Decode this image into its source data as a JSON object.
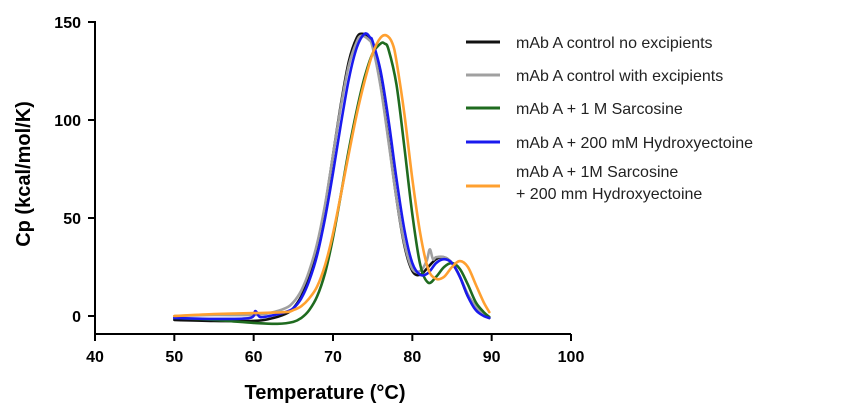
{
  "chart_data": {
    "type": "line",
    "xlabel": "Temperature (°C)",
    "ylabel": "Cp (kcal/mol/K)",
    "xlim": [
      40,
      100
    ],
    "ylim": [
      -5,
      150
    ],
    "xticks": [
      40,
      50,
      60,
      70,
      80,
      90,
      100
    ],
    "yticks": [
      0,
      50,
      100,
      150
    ],
    "grid": false,
    "legend_position": "top-right",
    "series": [
      {
        "name": "mAb A control no excipients",
        "color": "#111111",
        "x": [
          50,
          55,
          60,
          62,
          64,
          65,
          66,
          67,
          68,
          69,
          70,
          71,
          72,
          73,
          73.7,
          74.5,
          75,
          76,
          77,
          78,
          79,
          80,
          81,
          82,
          83,
          84,
          85,
          86,
          87,
          88,
          89,
          89.7
        ],
        "y": [
          -2,
          -2.5,
          -2.5,
          -1.5,
          1,
          4,
          10,
          20,
          35,
          56,
          82,
          108,
          130,
          142,
          144,
          142,
          138,
          118,
          90,
          60,
          36,
          23,
          21,
          25,
          29,
          30,
          27,
          20,
          10,
          4,
          0.5,
          -1
        ]
      },
      {
        "name": "mAb A control with excipients",
        "color": "#a0a0a0",
        "x": [
          50,
          55,
          60,
          62,
          64,
          65,
          66,
          67,
          68,
          69,
          70,
          71,
          72,
          73,
          73.6,
          74.5,
          75,
          76,
          77,
          78,
          79,
          80,
          81,
          81.8,
          82.2,
          82.6,
          83,
          84,
          85,
          86,
          87,
          88,
          89,
          89.7
        ],
        "y": [
          0,
          0.5,
          0.5,
          1.5,
          4,
          7,
          13,
          23,
          37,
          57,
          82,
          107,
          128,
          140,
          143,
          141,
          137,
          117,
          89,
          60,
          37,
          24,
          23,
          28,
          34,
          29,
          30,
          30,
          27,
          20,
          11,
          5,
          1,
          -1
        ]
      },
      {
        "name": "mAb A + 1 M Sarcosine",
        "color": "#1f6b1f",
        "x": [
          50,
          55,
          60,
          63,
          65,
          66,
          67,
          68,
          69,
          70,
          71,
          72,
          73,
          74,
          75,
          76,
          76.5,
          77,
          78,
          79,
          80,
          81,
          82,
          83,
          84,
          85,
          86,
          87,
          88,
          89,
          89.7
        ],
        "y": [
          -1,
          -2,
          -3.5,
          -4,
          -3,
          -1,
          3,
          10,
          22,
          40,
          62,
          85,
          105,
          122,
          134,
          139,
          139,
          136,
          118,
          86,
          52,
          26,
          17,
          20,
          25,
          27,
          24,
          16,
          7,
          2,
          -0.5
        ]
      },
      {
        "name": "mAb A + 200 mM Hydroxyectoine",
        "color": "#1a1aee",
        "x": [
          50,
          55,
          59.5,
          60.2,
          60.8,
          62,
          64,
          65,
          66,
          67,
          68,
          69,
          70,
          71,
          72,
          73,
          74,
          74.7,
          75,
          76,
          77,
          78,
          79,
          80,
          81,
          82,
          83,
          84,
          85,
          86,
          87,
          88,
          89,
          89.7
        ],
        "y": [
          -1,
          -1.5,
          -1,
          2.5,
          -0.5,
          0,
          2,
          4,
          9,
          18,
          31,
          50,
          73,
          98,
          121,
          137,
          144,
          142,
          140,
          125,
          100,
          70,
          44,
          27,
          21,
          22,
          27,
          29,
          27,
          20,
          10,
          3,
          0,
          -1
        ]
      },
      {
        "name": "mAb A + 1M Sarcosine + 200 mm Hydroxyectoine",
        "label_lines": [
          "mAb A + 1M Sarcosine",
          "+ 200 mm Hydroxyectoine"
        ],
        "color": "#ffa030",
        "x": [
          50,
          55,
          60,
          64,
          65,
          66,
          67,
          68,
          69,
          70,
          71,
          72,
          73,
          74,
          75,
          76,
          76.8,
          77.5,
          78,
          79,
          80,
          81,
          82,
          83,
          84,
          85,
          86,
          87,
          88,
          89,
          89.7
        ],
        "y": [
          0,
          1,
          1.5,
          2,
          3,
          5,
          9,
          15,
          26,
          42,
          62,
          83,
          103,
          120,
          134,
          142,
          143,
          139,
          130,
          103,
          70,
          42,
          24,
          19,
          20,
          25,
          28,
          25,
          16,
          7,
          2
        ]
      }
    ]
  }
}
